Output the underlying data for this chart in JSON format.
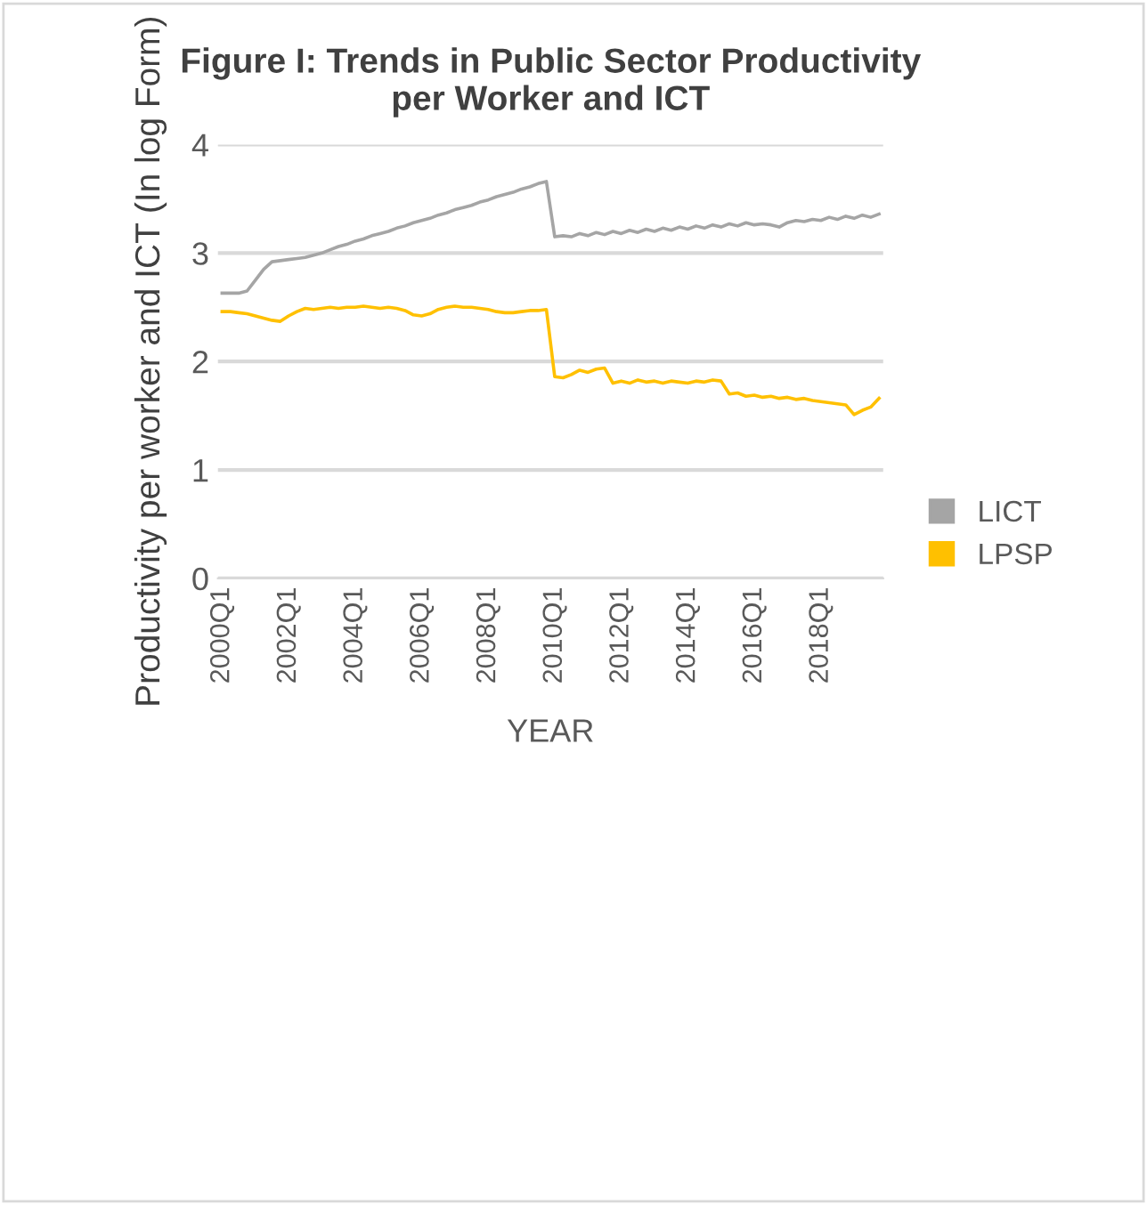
{
  "chart_data": {
    "type": "line",
    "title": "Figure I: Trends in Public Sector Productivity\nper Worker and ICT",
    "xlabel": "YEAR",
    "ylabel": "Productivity per worker and ICT (In log Form)",
    "categories": [
      "2000Q1",
      null,
      null,
      null,
      null,
      null,
      null,
      null,
      "2002Q1",
      null,
      null,
      null,
      null,
      null,
      null,
      null,
      "2004Q1",
      null,
      null,
      null,
      null,
      null,
      null,
      null,
      "2006Q1",
      null,
      null,
      null,
      null,
      null,
      null,
      null,
      "2008Q1",
      null,
      null,
      null,
      null,
      null,
      null,
      null,
      "2010Q1",
      null,
      null,
      null,
      null,
      null,
      null,
      null,
      "2012Q1",
      null,
      null,
      null,
      null,
      null,
      null,
      null,
      "2014Q1",
      null,
      null,
      null,
      null,
      null,
      null,
      null,
      "2016Q1",
      null,
      null,
      null,
      null,
      null,
      null,
      null,
      "2018Q1",
      null,
      null,
      null,
      null,
      null,
      null,
      null
    ],
    "series": [
      {
        "name": "LICT",
        "color": "#a5a5a5",
        "values": [
          2.63,
          2.63,
          2.63,
          2.65,
          2.75,
          2.85,
          2.92,
          2.93,
          2.94,
          2.95,
          2.96,
          2.98,
          3.0,
          3.03,
          3.06,
          3.08,
          3.11,
          3.13,
          3.16,
          3.18,
          3.2,
          3.23,
          3.25,
          3.28,
          3.3,
          3.32,
          3.35,
          3.37,
          3.4,
          3.42,
          3.44,
          3.47,
          3.49,
          3.52,
          3.54,
          3.56,
          3.59,
          3.61,
          3.64,
          3.66,
          3.15,
          3.16,
          3.15,
          3.18,
          3.16,
          3.19,
          3.17,
          3.2,
          3.18,
          3.21,
          3.19,
          3.22,
          3.2,
          3.23,
          3.21,
          3.24,
          3.22,
          3.25,
          3.23,
          3.26,
          3.24,
          3.27,
          3.25,
          3.28,
          3.26,
          3.27,
          3.26,
          3.24,
          3.28,
          3.3,
          3.29,
          3.31,
          3.3,
          3.33,
          3.31,
          3.34,
          3.32,
          3.35,
          3.33,
          3.36
        ]
      },
      {
        "name": "LPSP",
        "color": "#ffc000",
        "values": [
          2.46,
          2.46,
          2.45,
          2.44,
          2.42,
          2.4,
          2.38,
          2.37,
          2.42,
          2.46,
          2.49,
          2.48,
          2.49,
          2.5,
          2.49,
          2.5,
          2.5,
          2.51,
          2.5,
          2.49,
          2.5,
          2.49,
          2.47,
          2.43,
          2.42,
          2.44,
          2.48,
          2.5,
          2.51,
          2.5,
          2.5,
          2.49,
          2.48,
          2.46,
          2.45,
          2.45,
          2.46,
          2.47,
          2.47,
          2.48,
          1.86,
          1.85,
          1.88,
          1.92,
          1.9,
          1.93,
          1.94,
          1.8,
          1.82,
          1.8,
          1.83,
          1.81,
          1.82,
          1.8,
          1.82,
          1.81,
          1.8,
          1.82,
          1.81,
          1.83,
          1.82,
          1.7,
          1.71,
          1.68,
          1.69,
          1.67,
          1.68,
          1.66,
          1.67,
          1.65,
          1.66,
          1.64,
          1.63,
          1.62,
          1.61,
          1.6,
          1.51,
          1.55,
          1.58,
          1.66
        ]
      }
    ],
    "ylim": [
      0,
      4
    ],
    "yticks": [
      0,
      1,
      2,
      3,
      4
    ],
    "grid": "y",
    "legend": "right",
    "marker": "none",
    "line_style": "solid"
  }
}
